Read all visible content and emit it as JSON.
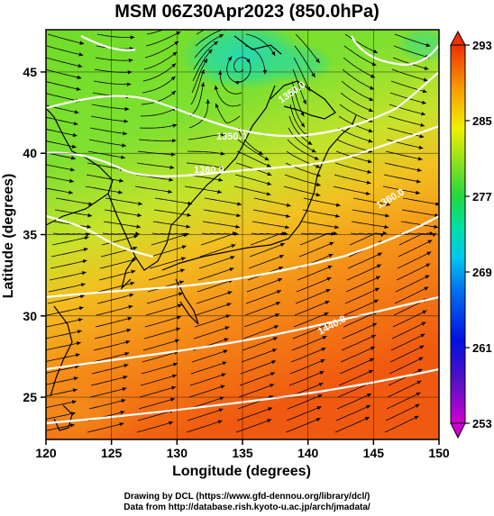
{
  "title": "MSM 06Z30Apr2023 (850.0hPa)",
  "axes": {
    "xlabel": "Longitude (degrees)",
    "ylabel": "Latitude  (degrees)",
    "xlim": [
      120,
      150
    ],
    "ylim": [
      22.4,
      47.6
    ],
    "xticks": [
      "120",
      "125",
      "130",
      "135",
      "140",
      "145",
      "150"
    ],
    "yticks": [
      "25",
      "30",
      "35",
      "40",
      "45"
    ]
  },
  "colorbar": {
    "min": 253,
    "max": 293,
    "ticks": [
      "253",
      "261",
      "269",
      "277",
      "285",
      "293"
    ]
  },
  "contours": {
    "color": "#ffffff",
    "labels": [
      "1350.0",
      "1360.0",
      "1350.0",
      "1360.0",
      "1440.0"
    ]
  },
  "credits": {
    "line1": "Drawing by DCL (https://www.gfd-dennou.org/library/dcl/)",
    "line2": "Data from http://database.rish.kyoto-u.ac.jp/arch/jmadata/"
  }
}
